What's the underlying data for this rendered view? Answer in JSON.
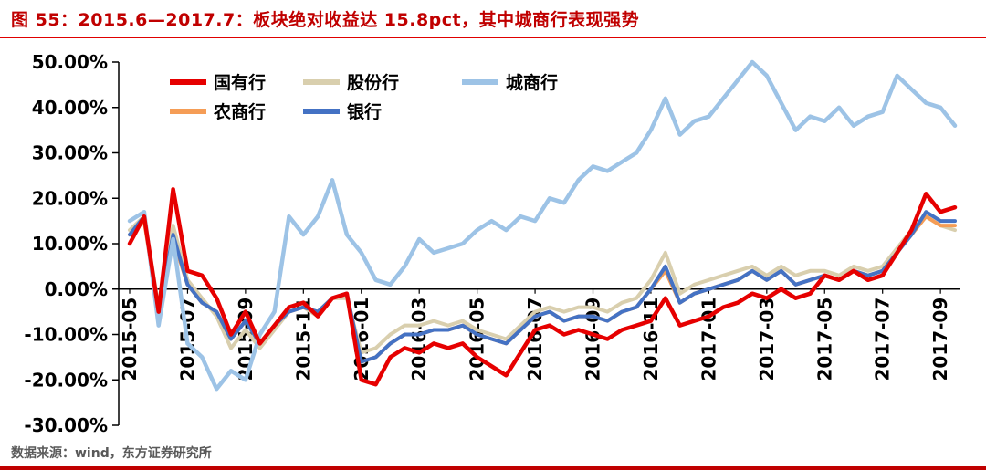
{
  "header": {
    "title": "图  55：2015.6—2017.7：板块绝对收益达  15.8pct，其中城商行表现强势"
  },
  "footer": {
    "source": "数据来源：wind，东方证券研究所"
  },
  "chart_data": {
    "type": "line",
    "title": "图 55：2015.6—2017.7：板块绝对收益达 15.8pct，其中城商行表现强势",
    "xlabel": "",
    "ylabel": "",
    "ylim": [
      -30,
      50
    ],
    "grid": false,
    "legend_position": "top-left, two rows, no border",
    "y_ticks": [
      {
        "value": 50,
        "label": "50.00%"
      },
      {
        "value": 40,
        "label": "40.00%"
      },
      {
        "value": 30,
        "label": "30.00%"
      },
      {
        "value": 20,
        "label": "20.00%"
      },
      {
        "value": 10,
        "label": "10.00%"
      },
      {
        "value": 0,
        "label": "0.00%"
      },
      {
        "value": -10,
        "label": "-10.00%"
      },
      {
        "value": -20,
        "label": "-20.00%"
      },
      {
        "value": -30,
        "label": "-30.00%"
      }
    ],
    "x_ticks": [
      {
        "index": 0,
        "label": "2015-05"
      },
      {
        "index": 4,
        "label": "2015-07"
      },
      {
        "index": 8,
        "label": "2015-09"
      },
      {
        "index": 12,
        "label": "2015-11"
      },
      {
        "index": 16,
        "label": "2016-01"
      },
      {
        "index": 20,
        "label": "2016-03"
      },
      {
        "index": 24,
        "label": "2016-05"
      },
      {
        "index": 28,
        "label": "2016-07"
      },
      {
        "index": 32,
        "label": "2016-09"
      },
      {
        "index": 36,
        "label": "2016-11"
      },
      {
        "index": 40,
        "label": "2017-01"
      },
      {
        "index": 44,
        "label": "2017-03"
      },
      {
        "index": 48,
        "label": "2017-05"
      },
      {
        "index": 52,
        "label": "2017-07"
      },
      {
        "index": 56,
        "label": "2017-09"
      }
    ],
    "x_note": "58 semi-monthly points from 2015-05 to 2017-09, values in percent",
    "series": [
      {
        "name": "股份行",
        "color": "#d9cfae",
        "width": 4,
        "values": [
          13,
          16,
          -4,
          14,
          2,
          -2,
          -6,
          -13,
          -9,
          -13,
          -9,
          -5,
          -4,
          -6,
          -2,
          -2,
          -14,
          -13,
          -10,
          -8,
          -8,
          -7,
          -8,
          -7,
          -9,
          -10,
          -11,
          -8,
          -5,
          -4,
          -5,
          -4,
          -4,
          -5,
          -3,
          -2,
          2,
          8,
          -1,
          1,
          2,
          3,
          4,
          5,
          3,
          5,
          3,
          4,
          4,
          3,
          5,
          4,
          5,
          9,
          13,
          16,
          14,
          13
        ]
      },
      {
        "name": "农商行",
        "color": "#f59d56",
        "width": 4,
        "values": [
          12,
          15,
          -5,
          11,
          1,
          -3,
          -5,
          -11,
          -7,
          -12,
          -8,
          -5,
          -4,
          -5,
          -2,
          -1,
          -16,
          -15,
          -12,
          -10,
          -10,
          -9,
          -9,
          -8,
          -10,
          -11,
          -12,
          -9,
          -6,
          -5,
          -7,
          -6,
          -6,
          -7,
          -5,
          -4,
          0,
          4,
          -3,
          -1,
          0,
          1,
          2,
          4,
          2,
          4,
          1,
          2,
          3,
          2,
          4,
          3,
          4,
          8,
          12,
          16,
          14,
          14
        ]
      },
      {
        "name": "银行",
        "color": "#4472c4",
        "width": 4,
        "values": [
          12,
          16,
          -5,
          12,
          1,
          -3,
          -5,
          -11,
          -7,
          -12,
          -8,
          -5,
          -4,
          -5,
          -2,
          -1,
          -16,
          -15,
          -12,
          -10,
          -10,
          -9,
          -9,
          -8,
          -10,
          -11,
          -12,
          -9,
          -6,
          -5,
          -7,
          -6,
          -6,
          -7,
          -5,
          -4,
          0,
          5,
          -3,
          -1,
          0,
          1,
          2,
          4,
          2,
          4,
          1,
          2,
          3,
          2,
          4,
          3,
          4,
          8,
          12,
          17,
          15,
          15
        ]
      },
      {
        "name": "城商行",
        "color": "#9dc3e6",
        "width": 4.5,
        "values": [
          15,
          17,
          -8,
          11,
          -12,
          -15,
          -22,
          -18,
          -20,
          -10,
          -5,
          16,
          12,
          16,
          24,
          12,
          8,
          2,
          1,
          5,
          11,
          8,
          9,
          10,
          13,
          15,
          13,
          16,
          15,
          20,
          19,
          24,
          27,
          26,
          28,
          30,
          35,
          42,
          34,
          37,
          38,
          42,
          46,
          50,
          47,
          41,
          35,
          38,
          37,
          40,
          36,
          38,
          39,
          47,
          44,
          41,
          40,
          36
        ]
      },
      {
        "name": "国有行",
        "color": "#e60000",
        "width": 4.5,
        "values": [
          10,
          16,
          -5,
          22,
          4,
          3,
          -2,
          -10,
          -5,
          -12,
          -8,
          -4,
          -3,
          -6,
          -2,
          -1,
          -20,
          -21,
          -15,
          -13,
          -14,
          -12,
          -13,
          -12,
          -15,
          -17,
          -19,
          -14,
          -9,
          -8,
          -10,
          -9,
          -10,
          -11,
          -9,
          -8,
          -7,
          -2,
          -8,
          -7,
          -6,
          -4,
          -3,
          -1,
          -2,
          0,
          -2,
          -1,
          3,
          2,
          4,
          2,
          3,
          8,
          13,
          21,
          17,
          18
        ]
      }
    ],
    "legend_rows": [
      [
        "国有行",
        "股份行",
        "城商行"
      ],
      [
        "农商行",
        "银行"
      ]
    ]
  }
}
